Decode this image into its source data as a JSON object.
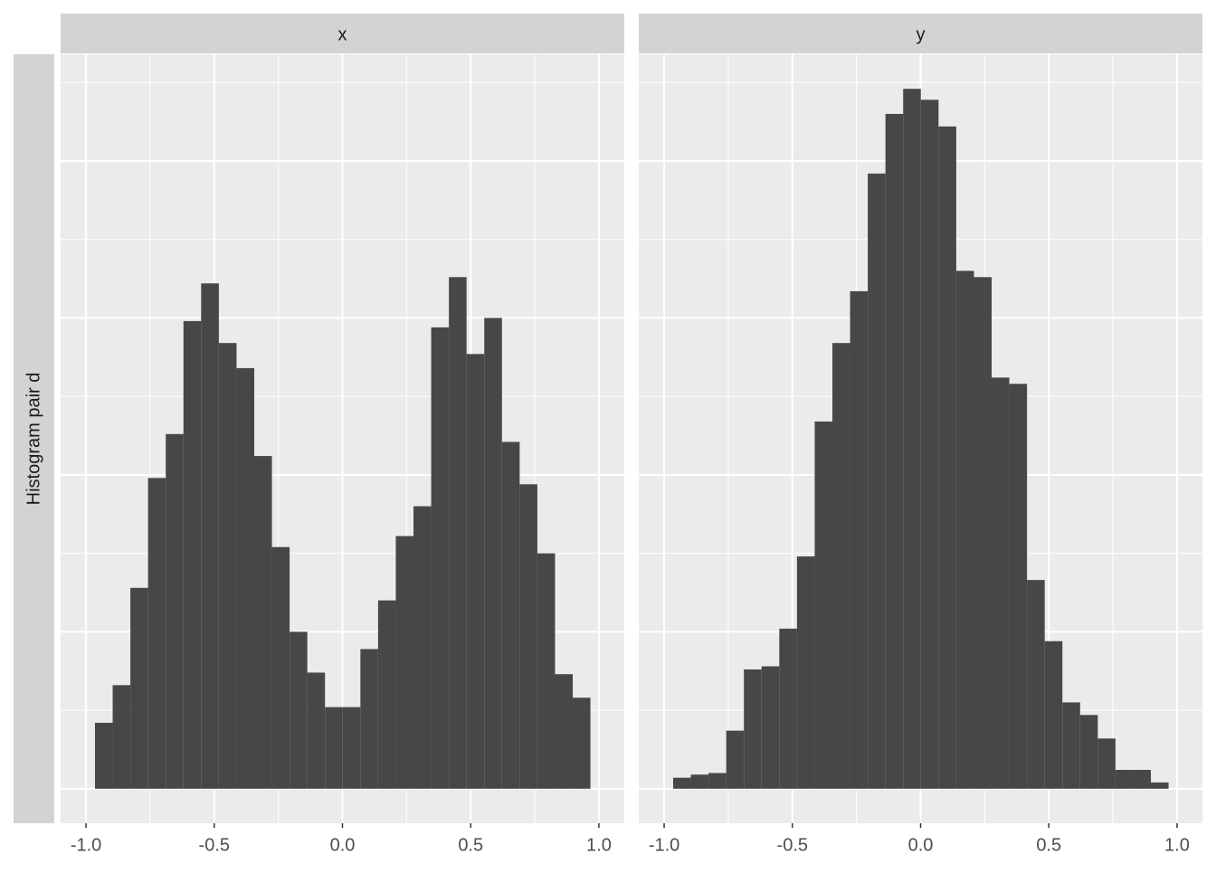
{
  "chart_data": {
    "type": "histogram",
    "ylabel": "Histogram pair d",
    "color": "#474747",
    "xlim": [
      -1.099,
      1.099
    ],
    "xticks": [
      {
        "value": -1,
        "label": "-1.0"
      },
      -0.5,
      {
        "value": 0,
        "label": "0.0"
      },
      0.5,
      {
        "value": 1,
        "label": "1.0"
      }
    ],
    "xminor": [
      -0.75,
      -0.25,
      0.25,
      0.75
    ],
    "ylim": [
      -22,
      468
    ],
    "yticks": [
      0,
      100,
      200,
      300,
      400
    ],
    "yminor": [
      50,
      150,
      250,
      350,
      450
    ],
    "grid": true,
    "facets": [
      {
        "title": "x",
        "bins": [
          -0.965,
          -0.896,
          -0.827,
          -0.758,
          -0.689,
          -0.62,
          -0.551,
          -0.482,
          -0.413,
          -0.344,
          -0.275,
          -0.206,
          -0.137,
          -0.068,
          0.001,
          0.07,
          0.139,
          0.208,
          0.277,
          0.346,
          0.415,
          0.484,
          0.553,
          0.622,
          0.691,
          0.76,
          0.829,
          0.898,
          0.967
        ],
        "values": [
          42,
          66,
          128,
          198,
          226,
          298,
          322,
          284,
          268,
          212,
          154,
          100,
          74,
          52,
          52,
          89,
          120,
          161,
          180,
          294,
          326,
          277,
          300,
          221,
          194,
          150,
          73,
          58
        ]
      },
      {
        "title": "y",
        "bins": [
          -0.965,
          -0.896,
          -0.827,
          -0.758,
          -0.689,
          -0.62,
          -0.551,
          -0.482,
          -0.413,
          -0.344,
          -0.275,
          -0.206,
          -0.137,
          -0.068,
          0.001,
          0.07,
          0.139,
          0.208,
          0.277,
          0.346,
          0.415,
          0.484,
          0.553,
          0.622,
          0.691,
          0.76,
          0.829,
          0.898,
          0.967
        ],
        "values": [
          7,
          9,
          10,
          37,
          76,
          78,
          102,
          148,
          234,
          284,
          317,
          392,
          430,
          446,
          439,
          422,
          330,
          326,
          262,
          258,
          133,
          94,
          55,
          47,
          32,
          12,
          12,
          4
        ]
      }
    ]
  }
}
